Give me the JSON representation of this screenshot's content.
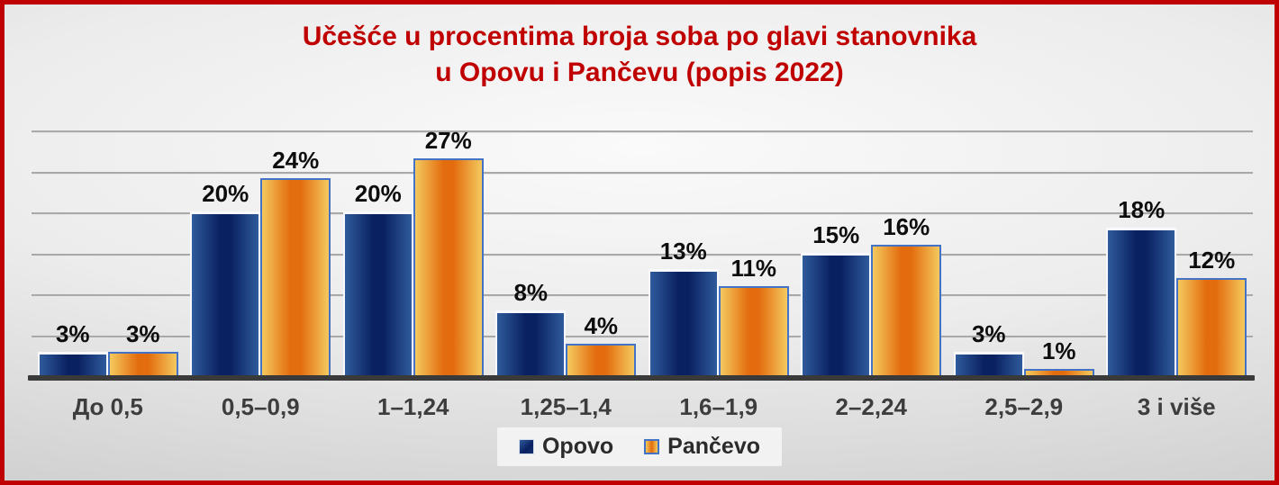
{
  "frame": {
    "border_color": "#c00000",
    "background": "light-gray-gradient"
  },
  "title": {
    "line1": "Učešće u procentima broja soba po glavi stanovnika",
    "line2": "u Opovu i Pančevu (popis 2022)",
    "color": "#c00000"
  },
  "chart_data": {
    "type": "bar",
    "categories": [
      "До 0,5",
      "0,5–0,9",
      "1–1,24",
      "1,25–1,4",
      "1,6–1,9",
      "2–2,24",
      "2,5–2,9",
      "3 i više"
    ],
    "series": [
      {
        "name": "Opovo",
        "values": [
          3,
          20,
          20,
          8,
          13,
          15,
          3,
          18
        ],
        "color_edge": "#2f5b9d",
        "color_center": "#0a2161",
        "border_color": "#ffffff"
      },
      {
        "name": "Pančevo",
        "values": [
          3,
          24,
          27,
          4,
          11,
          16,
          1,
          12
        ],
        "color_edge": "#f4c95f",
        "color_center": "#e36d0e",
        "border_color": "#4472c4"
      }
    ],
    "value_suffix": "%",
    "data_labels": true,
    "xlabel": "",
    "ylabel": "",
    "ylim": [
      0,
      30
    ],
    "gridline_step": 5,
    "grid": "horizontal",
    "y_axis_labels_visible": false,
    "legend_position": "bottom",
    "gridline_color": "#a9a9a9",
    "axis_line_color": "#3a3a3a",
    "data_label_color": "#0d0d0d",
    "category_label_color": "#3d3d3d"
  }
}
